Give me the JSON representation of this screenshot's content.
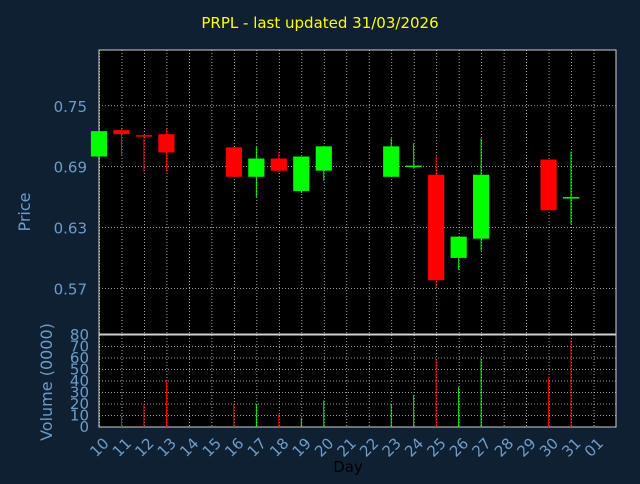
{
  "title": "PRPL - last updated 31/03/2026",
  "colors": {
    "background": "#0f2033",
    "plot_background": "#000000",
    "title": "#ffff00",
    "axis_text": "#6f9cc7",
    "grid": "#d0d0d0",
    "up": "#00ff00",
    "down": "#ff0000"
  },
  "chart_data": [
    {
      "type": "candlestick",
      "ylabel": "Price",
      "ylim": [
        0.525,
        0.805
      ],
      "yticks": [
        "0.75",
        "0.69",
        "0.63",
        "0.57"
      ],
      "ytick_values": [
        0.75,
        0.69,
        0.63,
        0.57
      ],
      "grid": true,
      "candles": [
        {
          "day": "10",
          "open": 0.7,
          "high": 0.725,
          "low": 0.7,
          "close": 0.725
        },
        {
          "day": "11",
          "open": 0.726,
          "high": 0.727,
          "low": 0.701,
          "close": 0.722
        },
        {
          "day": "12",
          "open": 0.721,
          "high": 0.722,
          "low": 0.685,
          "close": 0.72
        },
        {
          "day": "13",
          "open": 0.722,
          "high": 0.727,
          "low": 0.685,
          "close": 0.704
        },
        {
          "day": "16",
          "open": 0.709,
          "high": 0.709,
          "low": 0.68,
          "close": 0.68
        },
        {
          "day": "17",
          "open": 0.68,
          "high": 0.71,
          "low": 0.66,
          "close": 0.698
        },
        {
          "day": "18",
          "open": 0.698,
          "high": 0.704,
          "low": 0.684,
          "close": 0.686
        },
        {
          "day": "19",
          "open": 0.666,
          "high": 0.7,
          "low": 0.664,
          "close": 0.7
        },
        {
          "day": "20",
          "open": 0.686,
          "high": 0.71,
          "low": 0.676,
          "close": 0.71
        },
        {
          "day": "23",
          "open": 0.68,
          "high": 0.718,
          "low": 0.68,
          "close": 0.71
        },
        {
          "day": "24",
          "open": 0.69,
          "high": 0.713,
          "low": 0.688,
          "close": 0.691
        },
        {
          "day": "25",
          "open": 0.682,
          "high": 0.7,
          "low": 0.57,
          "close": 0.578
        },
        {
          "day": "26",
          "open": 0.6,
          "high": 0.621,
          "low": 0.588,
          "close": 0.621
        },
        {
          "day": "27",
          "open": 0.619,
          "high": 0.718,
          "low": 0.607,
          "close": 0.682
        },
        {
          "day": "30",
          "open": 0.697,
          "high": 0.697,
          "low": 0.647,
          "close": 0.647
        },
        {
          "day": "31",
          "open": 0.66,
          "high": 0.705,
          "low": 0.633,
          "close": 0.66
        }
      ]
    },
    {
      "type": "bar",
      "ylabel": "Volume (0000)",
      "xlabel": "Day",
      "ylim": [
        0,
        80
      ],
      "yticks": [
        "80",
        "70",
        "60",
        "50",
        "40",
        "30",
        "20",
        "10",
        "0"
      ],
      "ytick_values": [
        80,
        70,
        60,
        50,
        40,
        30,
        20,
        10,
        0
      ],
      "categories": [
        "10",
        "11",
        "12",
        "13",
        "14",
        "15",
        "16",
        "17",
        "18",
        "19",
        "20",
        "21",
        "22",
        "23",
        "24",
        "25",
        "26",
        "27",
        "28",
        "29",
        "30",
        "31",
        "01"
      ],
      "bars": [
        {
          "day": "11",
          "value": 9,
          "direction": "down"
        },
        {
          "day": "12",
          "value": 20,
          "direction": "down"
        },
        {
          "day": "13",
          "value": 40,
          "direction": "down"
        },
        {
          "day": "16",
          "value": 20,
          "direction": "down"
        },
        {
          "day": "17",
          "value": 20,
          "direction": "up"
        },
        {
          "day": "18",
          "value": 11,
          "direction": "down"
        },
        {
          "day": "19",
          "value": 8,
          "direction": "up"
        },
        {
          "day": "20",
          "value": 23,
          "direction": "up"
        },
        {
          "day": "23",
          "value": 20,
          "direction": "up"
        },
        {
          "day": "24",
          "value": 28,
          "direction": "up"
        },
        {
          "day": "25",
          "value": 59,
          "direction": "down"
        },
        {
          "day": "26",
          "value": 35,
          "direction": "up"
        },
        {
          "day": "27",
          "value": 59,
          "direction": "up"
        },
        {
          "day": "30",
          "value": 43,
          "direction": "down"
        },
        {
          "day": "31",
          "value": 76,
          "direction": "down"
        }
      ]
    }
  ]
}
